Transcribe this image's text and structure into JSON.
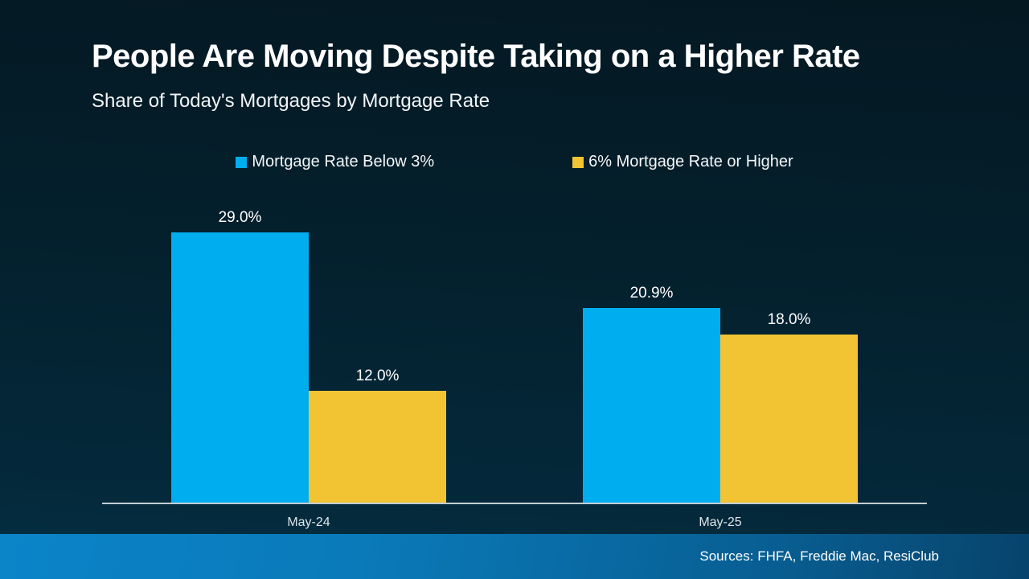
{
  "slide": {
    "title": "People Are Moving Despite Taking on a Higher Rate",
    "subtitle": "Share of Today's Mortgages by Mortgage Rate",
    "sources": "Sources: FHFA, Freddie Mac, ResiClub"
  },
  "colors": {
    "background_top": "#041822",
    "background_bottom": "#053044",
    "series_blue": "#00AEEF",
    "series_yellow": "#F2C433",
    "axis_line": "#C3CED6",
    "footer_left": "#0B84C9",
    "footer_right": "#07436B"
  },
  "chart_data": {
    "type": "bar",
    "title": "People Are Moving Despite Taking on a Higher Rate",
    "subtitle": "Share of Today's Mortgages by Mortgage Rate",
    "categories": [
      "May-24",
      "May-25"
    ],
    "series": [
      {
        "name": "Mortgage Rate Below 3%",
        "color": "#00AEEF",
        "values": [
          29.0,
          20.9
        ],
        "labels": [
          "29.0%",
          "20.9%"
        ]
      },
      {
        "name": "6% Mortgage Rate or Higher",
        "color": "#F2C433",
        "values": [
          12.0,
          18.0
        ],
        "labels": [
          "12.0%",
          "18.0%"
        ]
      }
    ],
    "xlabel": "",
    "ylabel": "",
    "ylim": [
      0,
      33
    ],
    "grid": false,
    "legend_position": "top-center",
    "data_labels": true,
    "y_axis_visible": false
  }
}
